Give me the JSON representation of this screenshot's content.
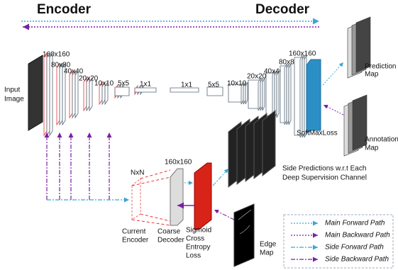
{
  "header": {
    "encoder": "Encoder",
    "decoder": "Decoder"
  },
  "input_image": [
    "Input",
    "Image"
  ],
  "encoder_sizes": [
    "160x160",
    "80x80",
    "40x40",
    "20x20",
    "10x10",
    "5x5",
    "1x1"
  ],
  "decoder_sizes": [
    "1x1",
    "5x5",
    "10x10",
    "20x20",
    "40x40",
    "80x80",
    "160x160"
  ],
  "prediction_map": [
    "Prediction",
    "Map"
  ],
  "softmax_loss": "SoftMaxLoss",
  "annotation_map": [
    "Annotation",
    "Map"
  ],
  "side_predictions": [
    "Side Predictions w.r.t Each",
    "Deep Supervision Channel"
  ],
  "side_block": {
    "kernel": "NxN",
    "size": "160x160",
    "current_encoder": [
      "Current",
      "Encoder"
    ],
    "coarse_decoder": [
      "Coarse",
      "Decoder"
    ],
    "loss": [
      "Sigmoid",
      "Cross",
      "Entropy",
      "Loss"
    ]
  },
  "edge_map": [
    "Edge",
    "Map"
  ],
  "legend": [
    "Main Forward Path",
    "Main Backward Path",
    "Side Forward Path",
    "Side Backward Path"
  ]
}
